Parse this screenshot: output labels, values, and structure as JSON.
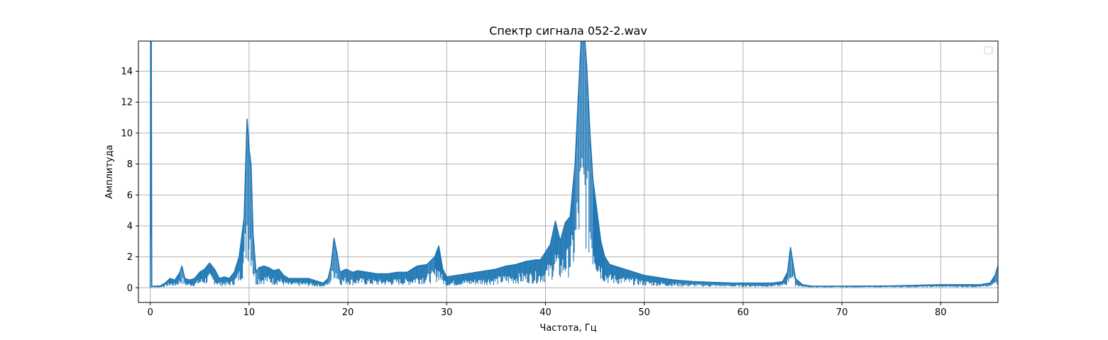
{
  "chart_data": {
    "type": "line",
    "title": "Спектр сигнала 052-2.wav",
    "xlabel": "Частота, Гц",
    "ylabel": "Амплитуда",
    "xlim": [
      -1.2,
      85.8
    ],
    "ylim": [
      -0.95,
      15.95
    ],
    "xticks": [
      0,
      10,
      20,
      30,
      40,
      50,
      60,
      70,
      80
    ],
    "yticks": [
      0,
      2,
      4,
      6,
      8,
      10,
      12,
      14
    ],
    "grid": true,
    "legend": "top-right",
    "colors": {
      "line": "#1f77b4",
      "grid": "#b0b0b0"
    },
    "series": [
      {
        "points": [
          [
            0.0,
            0.0
          ],
          [
            0.05,
            16.0
          ],
          [
            0.1,
            16.0
          ],
          [
            0.15,
            0.1
          ],
          [
            0.5,
            0.1
          ],
          [
            1.0,
            0.12
          ],
          [
            1.5,
            0.3
          ],
          [
            2.0,
            0.6
          ],
          [
            2.5,
            0.5
          ],
          [
            3.0,
            1.0
          ],
          [
            3.2,
            1.4
          ],
          [
            3.5,
            0.6
          ],
          [
            4.0,
            0.5
          ],
          [
            4.5,
            0.6
          ],
          [
            5.0,
            1.0
          ],
          [
            5.5,
            1.2
          ],
          [
            6.0,
            1.6
          ],
          [
            6.5,
            1.2
          ],
          [
            7.0,
            0.6
          ],
          [
            7.5,
            0.7
          ],
          [
            8.0,
            0.6
          ],
          [
            8.5,
            1.0
          ],
          [
            9.0,
            2.0
          ],
          [
            9.5,
            4.5
          ],
          [
            9.8,
            10.9
          ],
          [
            10.0,
            9.0
          ],
          [
            10.2,
            7.9
          ],
          [
            10.4,
            3.5
          ],
          [
            10.7,
            1.0
          ],
          [
            11.0,
            1.3
          ],
          [
            11.5,
            1.4
          ],
          [
            12.0,
            1.3
          ],
          [
            12.5,
            1.1
          ],
          [
            13.0,
            1.2
          ],
          [
            13.5,
            0.8
          ],
          [
            14.0,
            0.6
          ],
          [
            15.0,
            0.6
          ],
          [
            16.0,
            0.6
          ],
          [
            17.0,
            0.4
          ],
          [
            17.5,
            0.3
          ],
          [
            18.0,
            0.6
          ],
          [
            18.3,
            1.4
          ],
          [
            18.6,
            3.2
          ],
          [
            18.9,
            2.2
          ],
          [
            19.2,
            1.0
          ],
          [
            19.8,
            1.2
          ],
          [
            20.5,
            1.0
          ],
          [
            21.0,
            1.1
          ],
          [
            22.0,
            1.0
          ],
          [
            23.0,
            0.9
          ],
          [
            24.0,
            0.9
          ],
          [
            25.0,
            1.0
          ],
          [
            26.0,
            1.0
          ],
          [
            27.0,
            1.4
          ],
          [
            28.0,
            1.5
          ],
          [
            28.8,
            2.0
          ],
          [
            29.2,
            2.7
          ],
          [
            29.6,
            1.2
          ],
          [
            30.0,
            0.7
          ],
          [
            31.0,
            0.8
          ],
          [
            32.0,
            0.9
          ],
          [
            33.0,
            1.0
          ],
          [
            34.0,
            1.1
          ],
          [
            35.0,
            1.2
          ],
          [
            36.0,
            1.4
          ],
          [
            37.0,
            1.5
          ],
          [
            38.0,
            1.7
          ],
          [
            39.0,
            1.8
          ],
          [
            39.5,
            1.8
          ],
          [
            40.0,
            2.3
          ],
          [
            40.5,
            2.8
          ],
          [
            41.0,
            4.3
          ],
          [
            41.5,
            3.0
          ],
          [
            42.0,
            4.2
          ],
          [
            42.5,
            4.6
          ],
          [
            43.0,
            8.0
          ],
          [
            43.3,
            12.0
          ],
          [
            43.6,
            15.9
          ],
          [
            43.8,
            16.0
          ],
          [
            44.0,
            15.9
          ],
          [
            44.2,
            14.0
          ],
          [
            44.5,
            10.0
          ],
          [
            44.8,
            7.0
          ],
          [
            45.2,
            5.0
          ],
          [
            45.6,
            3.0
          ],
          [
            46.0,
            2.0
          ],
          [
            46.5,
            1.5
          ],
          [
            47.0,
            1.4
          ],
          [
            48.0,
            1.2
          ],
          [
            49.0,
            1.0
          ],
          [
            50.0,
            0.8
          ],
          [
            51.0,
            0.7
          ],
          [
            52.0,
            0.6
          ],
          [
            53.0,
            0.5
          ],
          [
            55.0,
            0.4
          ],
          [
            57.0,
            0.35
          ],
          [
            59.0,
            0.3
          ],
          [
            61.0,
            0.3
          ],
          [
            63.0,
            0.3
          ],
          [
            64.0,
            0.4
          ],
          [
            64.5,
            1.0
          ],
          [
            64.8,
            2.6
          ],
          [
            65.0,
            1.8
          ],
          [
            65.3,
            0.6
          ],
          [
            66.0,
            0.2
          ],
          [
            67.0,
            0.1
          ],
          [
            70.0,
            0.1
          ],
          [
            75.0,
            0.12
          ],
          [
            80.0,
            0.2
          ],
          [
            84.0,
            0.2
          ],
          [
            85.0,
            0.3
          ],
          [
            85.5,
            0.8
          ],
          [
            85.8,
            1.4
          ]
        ]
      }
    ]
  }
}
